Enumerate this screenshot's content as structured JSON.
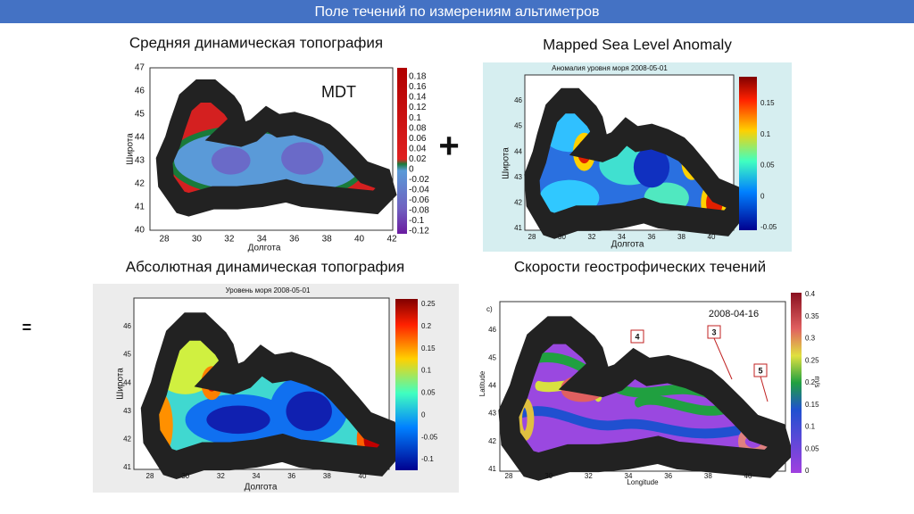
{
  "header": {
    "title": "Поле течений по измерениям альтиметров"
  },
  "symbols": {
    "plus": "+",
    "equals": "="
  },
  "panels": [
    {
      "title": "Средняя динамическая топография",
      "map_label": "MDT",
      "y_label": "Широта",
      "x_label": "Долгота",
      "xticks": [
        28,
        30,
        32,
        34,
        36,
        38,
        40,
        42
      ],
      "yticks": [
        40,
        41,
        42,
        43,
        44,
        45,
        46,
        47
      ],
      "colorbar_ticks": [
        0.18,
        0.16,
        0.14,
        0.12,
        0.1,
        0.08,
        0.06,
        0.04,
        0.02,
        0,
        -0.02,
        -0.04,
        -0.06,
        -0.08,
        -0.1,
        -0.12
      ]
    },
    {
      "title": "Mapped Sea Level Anomaly",
      "plot_title": "Аномалия уровня моря 2008-05-01",
      "y_label": "Широта",
      "x_label": "Долгота",
      "xticks": [
        28,
        30,
        32,
        34,
        36,
        38,
        40
      ],
      "yticks": [
        41,
        42,
        43,
        44,
        45,
        46
      ],
      "colorbar_ticks": [
        0.15,
        0.1,
        0.05,
        0,
        -0.05
      ]
    },
    {
      "title": "Абсолютная динамическая топография",
      "plot_title": "Уровень моря 2008-05-01",
      "y_label": "Широта",
      "x_label": "Долгота",
      "xticks": [
        28,
        30,
        32,
        34,
        36,
        38,
        40
      ],
      "yticks": [
        41,
        42,
        43,
        44,
        45,
        46
      ],
      "colorbar_ticks": [
        0.25,
        0.2,
        0.15,
        0.1,
        0.05,
        0,
        -0.05,
        -0.1
      ]
    },
    {
      "title": "Скорости геострофических течений",
      "panel_label": "c)",
      "date": "2008-04-16",
      "callouts": [
        "4",
        "3",
        "5"
      ],
      "y_label": "Latitude",
      "x_label": "Longitude",
      "colorbar_unit": "m/s",
      "xticks": [
        28,
        30,
        32,
        34,
        36,
        38,
        40
      ],
      "yticks": [
        41,
        42,
        43,
        44,
        45,
        46
      ],
      "colorbar_ticks": [
        0.4,
        0.35,
        0.3,
        0.25,
        0.2,
        0.15,
        0.1,
        0.05,
        0
      ]
    }
  ]
}
